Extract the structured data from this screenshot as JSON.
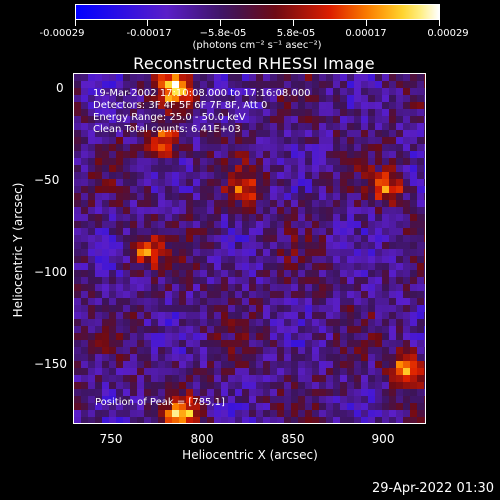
{
  "colorbar": {
    "labels": [
      "-0.00029",
      "-0.00017",
      "−5.8e-05",
      "5.8e-05",
      "0.00017",
      "0.00029"
    ],
    "units": "(photons cm⁻² s⁻¹ asec⁻²)"
  },
  "title": "Reconstructed RHESSI Image",
  "annotations": {
    "time": "19-Mar-2002 17:10:08.000 to 17:16:08.000",
    "detectors": "Detectors: 3F 4F 5F 6F 7F 8F, Att 0",
    "energy": "Energy Range: 25.0 - 50.0 keV",
    "method": "Clean     Total counts: 6.41E+03",
    "peak": "Position of Peak = [785,1]"
  },
  "axes": {
    "x_ticks": [
      "750",
      "800",
      "850",
      "900"
    ],
    "y_ticks": [
      "0",
      "−50",
      "−100",
      "−150"
    ],
    "xlabel": "Heliocentric X (arcsec)",
    "ylabel": "Heliocentric Y (arcsec)"
  },
  "chart_data": {
    "type": "heatmap",
    "title": "Reconstructed RHESSI Image",
    "xlabel": "Heliocentric X (arcsec)",
    "ylabel": "Heliocentric Y (arcsec)",
    "xlim": [
      730,
      925
    ],
    "ylim": [
      -185,
      8
    ],
    "x_ticks": [
      750,
      800,
      850,
      900
    ],
    "y_ticks": [
      0,
      -50,
      -100,
      -150
    ],
    "colorbar_range": [
      -0.00029,
      0.00029
    ],
    "colormap": "blue-purple-red-yellow-white",
    "peak_position": [
      785,
      1
    ],
    "bright_sources": [
      {
        "x": 785,
        "y": 1,
        "intensity": 0.00029
      },
      {
        "x": 780,
        "y": -30,
        "intensity": 0.00024
      },
      {
        "x": 770,
        "y": -90,
        "intensity": 0.0002
      },
      {
        "x": 825,
        "y": -55,
        "intensity": 0.00018
      },
      {
        "x": 905,
        "y": -55,
        "intensity": 0.0002
      },
      {
        "x": 915,
        "y": -155,
        "intensity": 0.00025
      },
      {
        "x": 790,
        "y": -180,
        "intensity": 0.00026
      }
    ]
  },
  "footer": {
    "timestamp": "29-Apr-2022 01:30"
  }
}
